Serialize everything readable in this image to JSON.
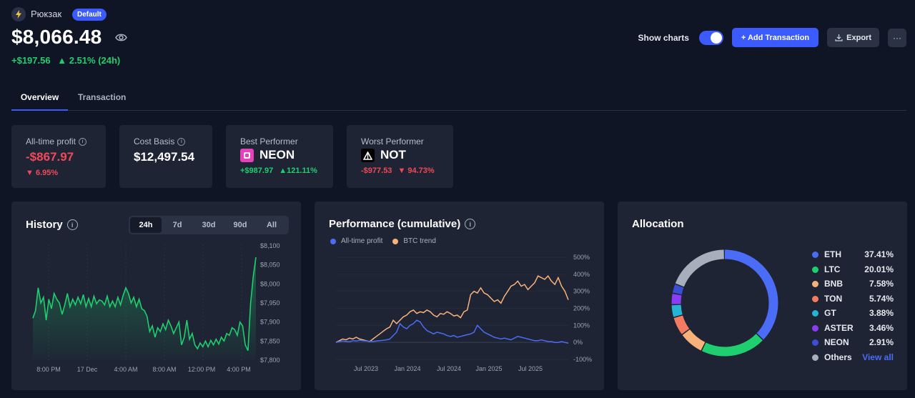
{
  "header": {
    "wallet_name": "Рюкзак",
    "badge": "Default",
    "balance": "$8,066.48",
    "change_abs": "+$197.56",
    "change_pct": "2.51% (24h)"
  },
  "toolbar": {
    "show_charts_label": "Show charts",
    "add_transaction_label": "+ Add Transaction",
    "export_label": "Export",
    "more_label": "···"
  },
  "tabs": {
    "overview": "Overview",
    "transaction": "Transaction"
  },
  "stats": {
    "all_time_profit": {
      "label": "All-time profit",
      "value": "-$867.97",
      "change": "6.95%"
    },
    "cost_basis": {
      "label": "Cost Basis",
      "value": "$12,497.54"
    },
    "best_performer": {
      "label": "Best Performer",
      "coin": "NEON",
      "value": "+$987.97",
      "change": "121.11%"
    },
    "worst_performer": {
      "label": "Worst Performer",
      "coin": "NOT",
      "value": "-$977.53",
      "change": "94.73%"
    }
  },
  "history": {
    "title": "History",
    "info": "i",
    "ranges": [
      "24h",
      "7d",
      "30d",
      "90d",
      "All"
    ],
    "selected_range": "24h"
  },
  "performance": {
    "title": "Performance (cumulative)",
    "info": "i"
  },
  "allocation": {
    "title": "Allocation",
    "items": [
      {
        "name": "ETH",
        "pct": "37.41%",
        "color": "#4a6cf7"
      },
      {
        "name": "LTC",
        "pct": "20.01%",
        "color": "#1fcf6f"
      },
      {
        "name": "BNB",
        "pct": "7.58%",
        "color": "#f7b27a"
      },
      {
        "name": "TON",
        "pct": "5.74%",
        "color": "#f47a60"
      },
      {
        "name": "GT",
        "pct": "3.88%",
        "color": "#25b3d6"
      },
      {
        "name": "ASTER",
        "pct": "3.46%",
        "color": "#8b3df5"
      },
      {
        "name": "NEON",
        "pct": "2.91%",
        "color": "#3b4fd6"
      },
      {
        "name": "Others",
        "pct": "",
        "color": "#a7afbd"
      }
    ],
    "view_all": "View all",
    "others_share": 19.01
  },
  "chart_data": [
    {
      "type": "area",
      "title": "History",
      "x_tick_labels": [
        "8:00 PM",
        "17 Dec",
        "4:00 AM",
        "8:00 AM",
        "12:00 PM",
        "4:00 PM"
      ],
      "y_tick_labels": [
        "$8,100",
        "$8,050",
        "$8,000",
        "$7,950",
        "$7,900",
        "$7,850",
        "$7,800"
      ],
      "ylim": [
        7800,
        8100
      ],
      "color": "#1fcf6f",
      "values": [
        7910,
        7930,
        7990,
        7950,
        7965,
        7905,
        7960,
        7935,
        7975,
        7960,
        7950,
        7920,
        7945,
        7975,
        7940,
        7960,
        7945,
        7965,
        7948,
        7972,
        7940,
        7962,
        7940,
        7968,
        7948,
        7958,
        7955,
        7945,
        7968,
        7940,
        7955,
        7940,
        7965,
        7945,
        7970,
        7990,
        7975,
        7950,
        7965,
        7940,
        7960,
        7935,
        7930,
        7915,
        7875,
        7890,
        7860,
        7885,
        7875,
        7895,
        7880,
        7905,
        7890,
        7870,
        7885,
        7900,
        7840,
        7860,
        7905,
        7855,
        7870,
        7840,
        7830,
        7845,
        7835,
        7850,
        7835,
        7852,
        7840,
        7855,
        7842,
        7860,
        7850,
        7870,
        7865,
        7885,
        7880,
        7865,
        7900,
        7890,
        7840,
        7825,
        7950,
        8020,
        8070
      ]
    },
    {
      "type": "line",
      "title": "Performance (cumulative)",
      "series": [
        {
          "name": "All-time profit",
          "color": "#4a6cf7",
          "values": [
            0,
            5,
            8,
            6,
            4,
            10,
            8,
            12,
            10,
            8,
            6,
            5,
            8,
            10,
            12,
            15,
            20,
            40,
            60,
            110,
            90,
            80,
            100,
            110,
            130,
            120,
            90,
            70,
            60,
            50,
            60,
            55,
            50,
            40,
            35,
            40,
            30,
            35,
            40,
            45,
            50,
            60,
            100,
            80,
            60,
            50,
            40,
            30,
            25,
            20,
            25,
            20,
            15,
            25,
            35,
            30,
            25,
            20,
            15,
            10,
            10,
            15,
            10,
            5,
            5,
            0,
            0,
            5,
            0,
            -5
          ]
        },
        {
          "name": "BTC trend",
          "color": "#f7b27a",
          "values": [
            0,
            10,
            20,
            15,
            25,
            20,
            30,
            20,
            15,
            10,
            5,
            20,
            35,
            50,
            65,
            80,
            90,
            130,
            110,
            130,
            150,
            160,
            180,
            190,
            170,
            180,
            175,
            190,
            180,
            160,
            150,
            170,
            165,
            180,
            170,
            155,
            160,
            145,
            180,
            190,
            280,
            300,
            290,
            320,
            290,
            280,
            260,
            240,
            250,
            230,
            270,
            300,
            330,
            340,
            360,
            330,
            340,
            310,
            330,
            350,
            390,
            380,
            370,
            390,
            360,
            340,
            380,
            330,
            300,
            250
          ]
        }
      ],
      "x_tick_labels": [
        "Jul 2023",
        "Jan 2024",
        "Jul 2024",
        "Jan 2025",
        "Jul 2025"
      ],
      "y_tick_labels": [
        "500%",
        "400%",
        "300%",
        "200%",
        "100%",
        "0%",
        "-100%"
      ],
      "ylim": [
        -100,
        500
      ]
    },
    {
      "type": "pie",
      "title": "Allocation",
      "labels": [
        "ETH",
        "LTC",
        "BNB",
        "TON",
        "GT",
        "ASTER",
        "NEON",
        "Others"
      ],
      "values": [
        37.41,
        20.01,
        7.58,
        5.74,
        3.88,
        3.46,
        2.91,
        19.01
      ]
    }
  ]
}
